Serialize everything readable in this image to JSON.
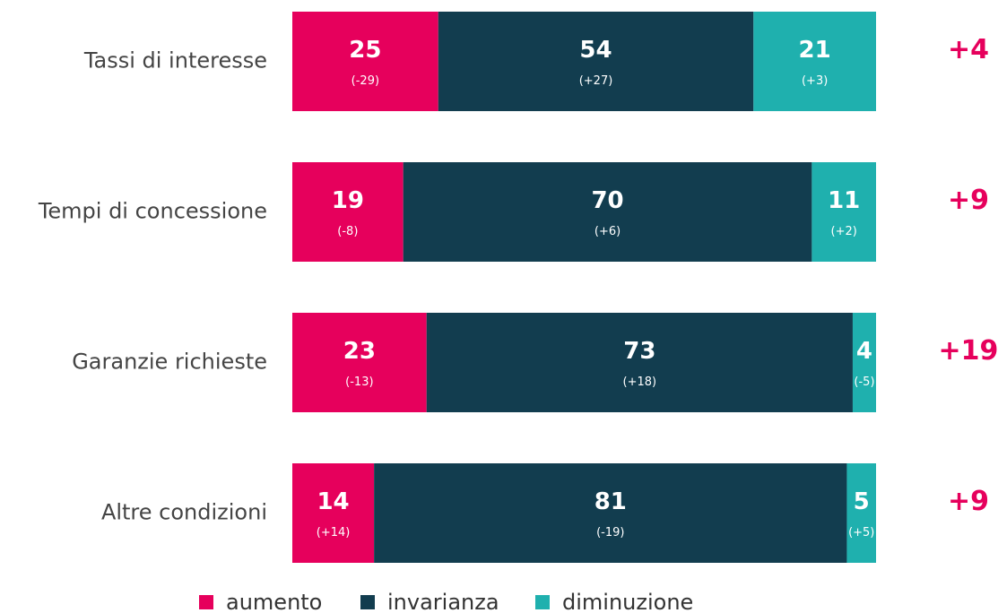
{
  "chart_data": {
    "type": "stacked-barh",
    "categories": [
      "Tassi di interesse",
      "Tempi di concessione",
      "Garanzie richieste",
      "Altre condizioni"
    ],
    "series": [
      {
        "name": "aumento",
        "color": "#e6005c",
        "values": [
          25,
          19,
          23,
          14
        ],
        "changes": [
          -29,
          -8,
          -13,
          14
        ],
        "change_labels": [
          "(-29)",
          "(-8)",
          "(-13)",
          "(+14)"
        ]
      },
      {
        "name": "invarianza",
        "color": "#123d4f",
        "values": [
          54,
          70,
          73,
          81
        ],
        "changes": [
          27,
          6,
          18,
          -19
        ],
        "change_labels": [
          "(+27)",
          "(+6)",
          "(+18)",
          "(-19)"
        ]
      },
      {
        "name": "diminuzione",
        "color": "#1fb0ae",
        "values": [
          21,
          11,
          4,
          5
        ],
        "changes": [
          3,
          2,
          -5,
          5
        ],
        "change_labels": [
          "(+3)",
          "(+2)",
          "(-5)",
          "(+5)"
        ]
      }
    ],
    "balance": [
      4,
      9,
      19,
      9
    ],
    "balance_labels": [
      "+4",
      "+9",
      "+19",
      "+9"
    ],
    "balance_color": "#e6005c",
    "legend": "bottom"
  }
}
